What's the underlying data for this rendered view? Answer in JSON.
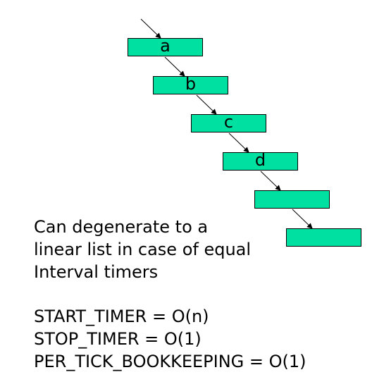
{
  "diagram": {
    "nodes": [
      {
        "label": "a"
      },
      {
        "label": "b"
      },
      {
        "label": "c"
      },
      {
        "label": "d"
      },
      {
        "label": ""
      },
      {
        "label": ""
      }
    ],
    "colors": {
      "node_fill": "#00e0a0",
      "stroke": "#000000"
    }
  },
  "caption": {
    "lines": [
      "Can degenerate to a",
      "linear list in case of equal",
      "Interval timers"
    ]
  },
  "complexity": {
    "start_timer": "START_TIMER = O(n)",
    "stop_timer": "STOP_TIMER = O(1)",
    "per_tick": "PER_TICK_BOOKKEEPING = O(1)"
  }
}
